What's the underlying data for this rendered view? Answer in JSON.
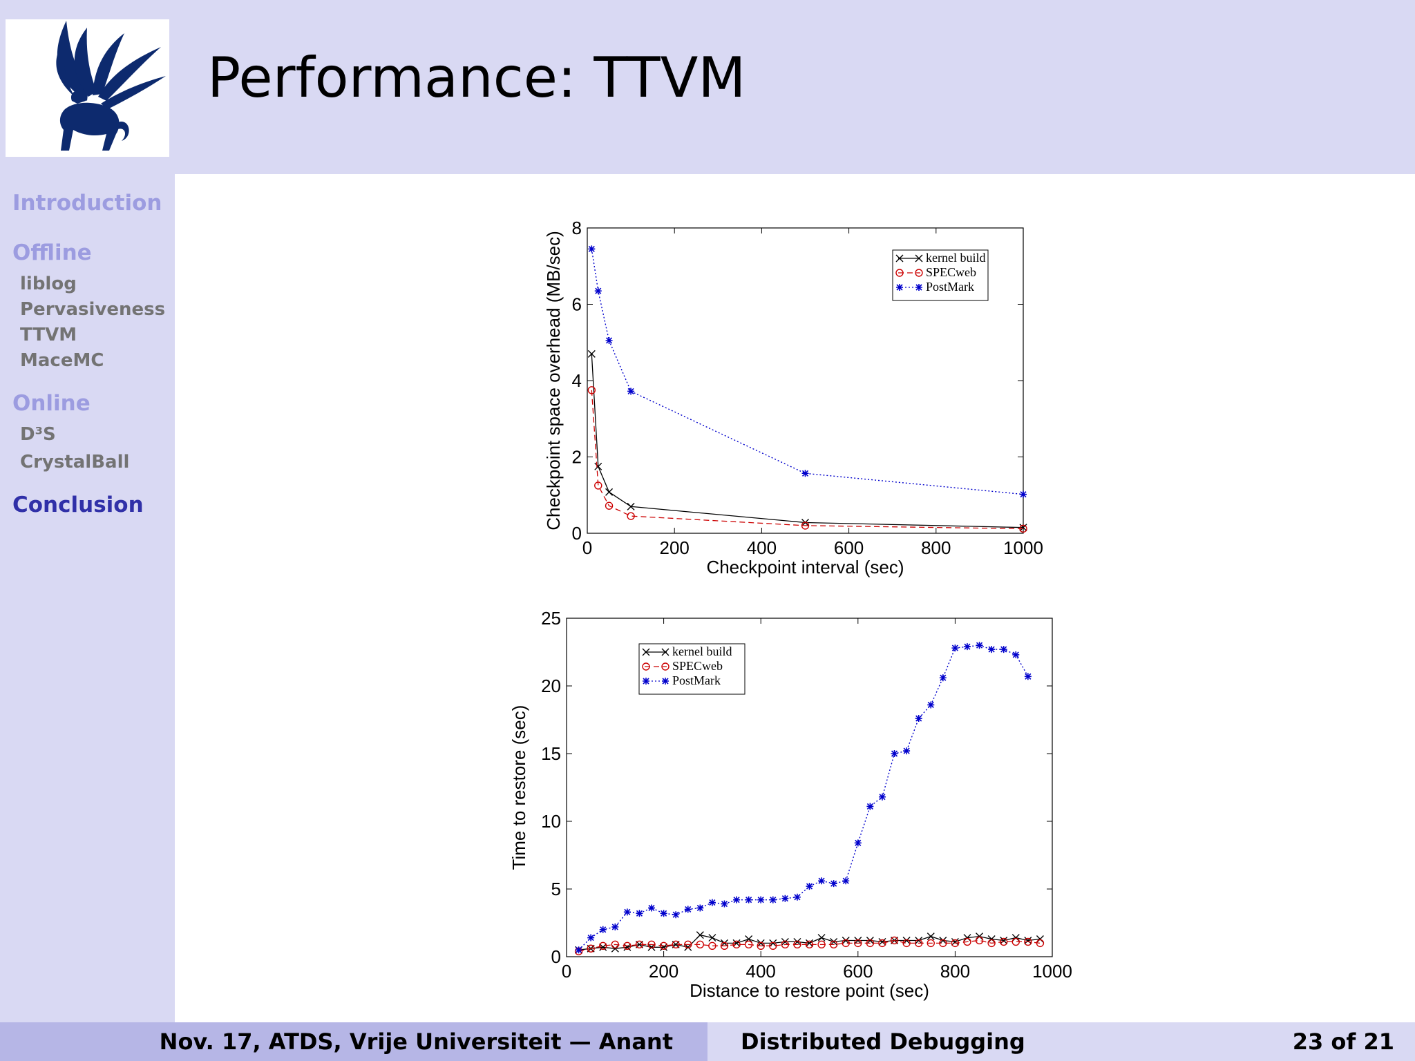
{
  "slide": {
    "title": "Performance: TTVM",
    "logo": "griffin-logo"
  },
  "sidebar": {
    "sections": [
      {
        "label": "Introduction",
        "active": false,
        "items": []
      },
      {
        "label": "Offline",
        "active": false,
        "items": [
          "liblog",
          "Pervasiveness",
          "TTVM",
          "MaceMC"
        ]
      },
      {
        "label": "Online",
        "active": false,
        "items": [
          "D³S",
          "CrystalBall"
        ]
      },
      {
        "label": "Conclusion",
        "active": true,
        "items": []
      }
    ]
  },
  "footer": {
    "left": "Nov. 17, ATDS, Vrije Universiteit — Anant",
    "center": "Distributed Debugging",
    "page": "23 of 21"
  },
  "colors": {
    "header_bg": "#d9d9f3",
    "footer_left_bg": "#b6b6e6",
    "nav_inactive": "#9c9ce0",
    "nav_active": "#3030a8",
    "nav_sub": "#737373",
    "logo": "#0d2a6e",
    "kernel": "#000000",
    "specweb": "#cc0000",
    "postmark": "#0000cc"
  },
  "chart_data": [
    {
      "type": "line",
      "xlabel": "Checkpoint interval (sec)",
      "ylabel": "Checkpoint space overhead (MB/sec)",
      "xlim": [
        0,
        1000
      ],
      "ylim": [
        0,
        8
      ],
      "xticks": [
        0,
        200,
        400,
        600,
        800,
        1000
      ],
      "yticks": [
        0,
        2,
        4,
        6,
        8
      ],
      "legend_position": "top-right",
      "series": [
        {
          "name": "kernel build",
          "marker": "x",
          "dash": "solid",
          "color": "#000000",
          "x": [
            10,
            25,
            50,
            100,
            500,
            1000
          ],
          "y": [
            4.7,
            1.75,
            1.08,
            0.7,
            0.28,
            0.15
          ]
        },
        {
          "name": "SPECweb",
          "marker": "o",
          "dash": "dashed",
          "color": "#cc0000",
          "x": [
            10,
            25,
            50,
            100,
            500,
            1000
          ],
          "y": [
            3.75,
            1.25,
            0.72,
            0.45,
            0.2,
            0.12
          ]
        },
        {
          "name": "PostMark",
          "marker": "*",
          "dash": "dotted",
          "color": "#0000cc",
          "x": [
            10,
            25,
            50,
            100,
            500,
            1000
          ],
          "y": [
            7.45,
            6.35,
            5.05,
            3.72,
            1.57,
            1.02
          ]
        }
      ]
    },
    {
      "type": "line",
      "xlabel": "Distance to restore point (sec)",
      "ylabel": "Time to restore (sec)",
      "xlim": [
        0,
        1000
      ],
      "ylim": [
        0,
        25
      ],
      "xticks": [
        0,
        200,
        400,
        600,
        800,
        1000
      ],
      "yticks": [
        0,
        5,
        10,
        15,
        20,
        25
      ],
      "legend_position": "top-left",
      "series": [
        {
          "name": "kernel build",
          "marker": "x",
          "dash": "solid",
          "color": "#000000",
          "x": [
            25,
            50,
            75,
            100,
            125,
            150,
            175,
            200,
            225,
            250,
            275,
            300,
            325,
            350,
            375,
            400,
            425,
            450,
            475,
            500,
            525,
            550,
            575,
            600,
            625,
            650,
            675,
            700,
            725,
            750,
            775,
            800,
            825,
            850,
            875,
            900,
            925,
            950,
            975
          ],
          "y": [
            0.5,
            0.6,
            0.7,
            0.6,
            0.7,
            0.9,
            0.7,
            0.7,
            0.9,
            0.7,
            1.6,
            1.4,
            1.0,
            1.0,
            1.3,
            1.0,
            1.0,
            1.1,
            1.1,
            1.0,
            1.4,
            1.1,
            1.2,
            1.2,
            1.2,
            1.1,
            1.2,
            1.2,
            1.2,
            1.5,
            1.2,
            1.1,
            1.4,
            1.5,
            1.3,
            1.2,
            1.4,
            1.2,
            1.3
          ]
        },
        {
          "name": "SPECweb",
          "marker": "o",
          "dash": "dashed",
          "color": "#cc0000",
          "x": [
            25,
            50,
            75,
            100,
            125,
            150,
            175,
            200,
            225,
            250,
            275,
            300,
            325,
            350,
            375,
            400,
            425,
            450,
            475,
            500,
            525,
            550,
            575,
            600,
            625,
            650,
            675,
            700,
            725,
            750,
            775,
            800,
            825,
            850,
            875,
            900,
            925,
            950,
            975
          ],
          "y": [
            0.4,
            0.6,
            0.8,
            0.9,
            0.8,
            0.9,
            0.9,
            0.8,
            0.9,
            0.9,
            0.9,
            0.8,
            0.8,
            0.9,
            0.9,
            0.8,
            0.8,
            0.9,
            0.9,
            0.9,
            0.9,
            0.9,
            1.0,
            1.0,
            1.0,
            1.0,
            1.2,
            1.0,
            1.0,
            1.0,
            1.0,
            1.0,
            1.1,
            1.2,
            1.0,
            1.1,
            1.1,
            1.1,
            1.0
          ]
        },
        {
          "name": "PostMark",
          "marker": "*",
          "dash": "dotted",
          "color": "#0000cc",
          "x": [
            25,
            50,
            75,
            100,
            125,
            150,
            175,
            200,
            225,
            250,
            275,
            300,
            325,
            350,
            375,
            400,
            425,
            450,
            475,
            500,
            525,
            550,
            575,
            600,
            625,
            650,
            675,
            700,
            725,
            750,
            775,
            800,
            825,
            850,
            875,
            900,
            925,
            950
          ],
          "y": [
            0.5,
            1.4,
            2.0,
            2.2,
            3.3,
            3.2,
            3.6,
            3.2,
            3.1,
            3.5,
            3.6,
            4.0,
            3.9,
            4.2,
            4.2,
            4.2,
            4.2,
            4.3,
            4.4,
            5.2,
            5.6,
            5.4,
            5.6,
            8.4,
            11.1,
            11.8,
            15.0,
            15.2,
            17.6,
            18.6,
            20.6,
            22.8,
            22.9,
            23.0,
            22.7,
            22.7,
            22.3,
            20.7
          ]
        }
      ]
    }
  ]
}
